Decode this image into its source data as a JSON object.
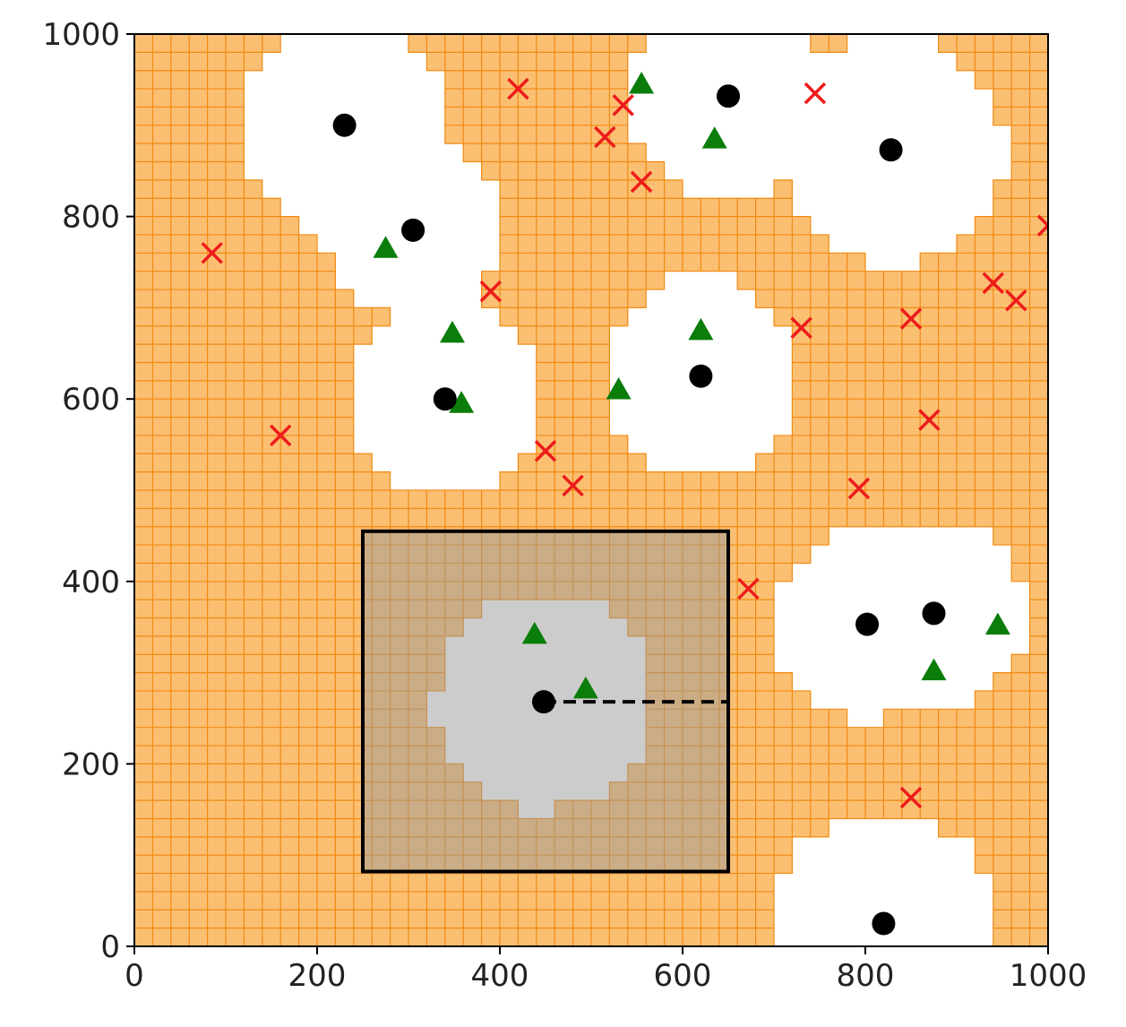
{
  "chart_data": {
    "type": "scatter",
    "title": "",
    "xlabel": "",
    "ylabel": "",
    "xlim": [
      0,
      1000
    ],
    "ylim": [
      0,
      1000
    ],
    "xticks": [
      "0",
      "200",
      "400",
      "600",
      "800",
      "1000"
    ],
    "yticks": [
      "0",
      "200",
      "400",
      "600",
      "800",
      "1000"
    ],
    "grid_cell_size": 20,
    "colors": {
      "fill": "#fbbf72",
      "grid_line": "#f18a12",
      "clear": "#ffffff",
      "highlight_overlay": "#9a9a9a",
      "circle": "#000000",
      "triangle": "#0a7d0a",
      "cross": "#ee1b1b"
    },
    "clear_regions": [
      {
        "center": [
          230,
          900
        ],
        "radius": 120
      },
      {
        "center": [
          305,
          785
        ],
        "radius": 100
      },
      {
        "center": [
          650,
          932
        ],
        "radius": 110
      },
      {
        "center": [
          828,
          873
        ],
        "radius": 125
      },
      {
        "center": [
          340,
          600
        ],
        "radius": 105
      },
      {
        "center": [
          620,
          625
        ],
        "radius": 110
      },
      {
        "center": [
          802,
          353
        ],
        "radius": 105
      },
      {
        "center": [
          875,
          365
        ],
        "radius": 105
      },
      {
        "center": [
          820,
          25
        ],
        "radius": 125
      },
      {
        "center": [
          448,
          268
        ],
        "radius": 120
      }
    ],
    "highlight_box": {
      "x0": 250,
      "y0": 82,
      "x1": 650,
      "y1": 455
    },
    "dashed_segment": {
      "from": [
        448,
        268
      ],
      "to": [
        650,
        268
      ]
    },
    "circles": [
      [
        230,
        900
      ],
      [
        305,
        785
      ],
      [
        650,
        932
      ],
      [
        828,
        873
      ],
      [
        340,
        600
      ],
      [
        620,
        625
      ],
      [
        802,
        353
      ],
      [
        875,
        365
      ],
      [
        820,
        25
      ],
      [
        448,
        268
      ]
    ],
    "triangles": [
      [
        555,
        945
      ],
      [
        635,
        885
      ],
      [
        275,
        765
      ],
      [
        348,
        672
      ],
      [
        358,
        595
      ],
      [
        530,
        610
      ],
      [
        620,
        675
      ],
      [
        438,
        342
      ],
      [
        494,
        282
      ],
      [
        875,
        302
      ],
      [
        945,
        352
      ]
    ],
    "crosses": [
      [
        420,
        940
      ],
      [
        535,
        922
      ],
      [
        515,
        887
      ],
      [
        555,
        838
      ],
      [
        745,
        935
      ],
      [
        85,
        760
      ],
      [
        390,
        718
      ],
      [
        1000,
        790
      ],
      [
        940,
        727
      ],
      [
        965,
        708
      ],
      [
        730,
        678
      ],
      [
        850,
        688
      ],
      [
        160,
        560
      ],
      [
        450,
        543
      ],
      [
        480,
        505
      ],
      [
        870,
        577
      ],
      [
        793,
        502
      ],
      [
        672,
        392
      ],
      [
        850,
        163
      ]
    ]
  }
}
